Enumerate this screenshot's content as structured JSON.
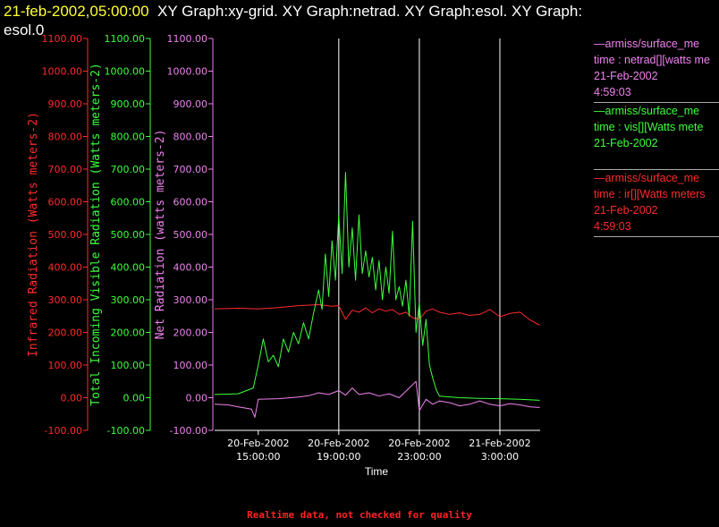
{
  "header": {
    "timestamp": "21-feb-2002,05:00:00",
    "titles": "XY Graph:xy-grid.  XY Graph:netrad.  XY Graph:esol.  XY Graph:",
    "titles_line2": "esol.0"
  },
  "colors": {
    "ir": "#ff2b2b",
    "vis": "#3dff3d",
    "net": "#ee82ee",
    "axis_x": "#ffffff",
    "grid": "#ffffff"
  },
  "legend": [
    {
      "line1": "—armiss/surface_me",
      "line2": "time : netrad[][watts me",
      "line3": "21-Feb-2002",
      "line4": "4:59:03",
      "color": "#ee82ee"
    },
    {
      "line1": "—armiss/surface_me",
      "line2": "time : vis[][Watts mete",
      "line3": "21-Feb-2002",
      "line4": "",
      "color": "#3dff3d"
    },
    {
      "line1": "—armiss/surface_me",
      "line2": "time : ir[][Watts meters",
      "line3": "21-Feb-2002",
      "line4": "4:59:03",
      "color": "#ff2b2b"
    }
  ],
  "footer": "Realtime data, not checked for quality",
  "chart_data": {
    "type": "line",
    "xlabel": "Time",
    "x_ticks": [
      {
        "time": "2002-02-20T15:00:00",
        "line1": "20-Feb-2002",
        "line2": "15:00:00"
      },
      {
        "time": "2002-02-20T19:00:00",
        "line1": "20-Feb-2002",
        "line2": "19:00:00"
      },
      {
        "time": "2002-02-20T23:00:00",
        "line1": "20-Feb-2002",
        "line2": "23:00:00"
      },
      {
        "time": "2002-02-21T03:00:00",
        "line1": "21-Feb-2002",
        "line2": "3:00:00"
      }
    ],
    "xlim": [
      "2002-02-20T12:50:00",
      "2002-02-21T05:00:00"
    ],
    "grid_x": [
      "2002-02-20T19:00:00",
      "2002-02-20T23:00:00",
      "2002-02-21T03:00:00"
    ],
    "axes": [
      {
        "label": "Infrared Radiation (Watts meters-2)",
        "ylim": [
          -100,
          1100
        ],
        "ticks": [
          "-100.00",
          "0.00",
          "100.00",
          "200.00",
          "300.00",
          "400.00",
          "500.00",
          "600.00",
          "700.00",
          "800.00",
          "900.00",
          "1000.00",
          "1100.00"
        ]
      },
      {
        "label": "Total Incoming Visible Radiation (Watts meters-2)",
        "ylim": [
          -100,
          1100
        ],
        "ticks": [
          "-100.00",
          "0.00",
          "100.00",
          "200.00",
          "300.00",
          "400.00",
          "500.00",
          "600.00",
          "700.00",
          "800.00",
          "900.00",
          "1000.00",
          "1100.00"
        ]
      },
      {
        "label": "Net Radiation (watts meters-2)",
        "ylim": [
          -100,
          1100
        ],
        "ticks": [
          "-100.00",
          "0.00",
          "100.00",
          "200.00",
          "300.00",
          "400.00",
          "500.00",
          "600.00",
          "700.00",
          "800.00",
          "900.00",
          "1000.00",
          "1100.00"
        ]
      }
    ],
    "series": [
      {
        "name": "ir",
        "x": [
          "2002-02-20T12:50:00",
          "2002-02-20T14:00:00",
          "2002-02-20T15:00:00",
          "2002-02-20T16:00:00",
          "2002-02-20T17:00:00",
          "2002-02-20T18:00:00",
          "2002-02-20T18:40:00",
          "2002-02-20T19:00:00",
          "2002-02-20T19:20:00",
          "2002-02-20T19:40:00",
          "2002-02-20T20:00:00",
          "2002-02-20T20:20:00",
          "2002-02-20T20:40:00",
          "2002-02-20T21:00:00",
          "2002-02-20T21:20:00",
          "2002-02-20T21:40:00",
          "2002-02-20T22:00:00",
          "2002-02-20T22:20:00",
          "2002-02-20T22:40:00",
          "2002-02-20T23:00:00",
          "2002-02-20T23:20:00",
          "2002-02-20T23:40:00",
          "2002-02-21T00:00:00",
          "2002-02-21T00:30:00",
          "2002-02-21T01:00:00",
          "2002-02-21T01:30:00",
          "2002-02-21T02:00:00",
          "2002-02-21T02:30:00",
          "2002-02-21T03:00:00",
          "2002-02-21T03:30:00",
          "2002-02-21T04:00:00",
          "2002-02-21T04:30:00",
          "2002-02-21T04:59:00"
        ],
        "y": [
          272,
          274,
          272,
          276,
          282,
          285,
          280,
          282,
          240,
          268,
          262,
          275,
          260,
          272,
          265,
          270,
          255,
          262,
          245,
          240,
          265,
          272,
          262,
          255,
          260,
          252,
          255,
          270,
          248,
          258,
          262,
          238,
          222
        ]
      },
      {
        "name": "vis",
        "x": [
          "2002-02-20T12:50:00",
          "2002-02-20T14:00:00",
          "2002-02-20T14:45:00",
          "2002-02-20T15:00:00",
          "2002-02-20T15:15:00",
          "2002-02-20T15:30:00",
          "2002-02-20T15:45:00",
          "2002-02-20T16:00:00",
          "2002-02-20T16:15:00",
          "2002-02-20T16:30:00",
          "2002-02-20T16:45:00",
          "2002-02-20T17:00:00",
          "2002-02-20T17:15:00",
          "2002-02-20T17:30:00",
          "2002-02-20T17:45:00",
          "2002-02-20T18:00:00",
          "2002-02-20T18:10:00",
          "2002-02-20T18:20:00",
          "2002-02-20T18:30:00",
          "2002-02-20T18:40:00",
          "2002-02-20T18:50:00",
          "2002-02-20T19:00:00",
          "2002-02-20T19:10:00",
          "2002-02-20T19:20:00",
          "2002-02-20T19:30:00",
          "2002-02-20T19:40:00",
          "2002-02-20T19:50:00",
          "2002-02-20T20:00:00",
          "2002-02-20T20:10:00",
          "2002-02-20T20:20:00",
          "2002-02-20T20:30:00",
          "2002-02-20T20:40:00",
          "2002-02-20T20:50:00",
          "2002-02-20T21:00:00",
          "2002-02-20T21:10:00",
          "2002-02-20T21:20:00",
          "2002-02-20T21:30:00",
          "2002-02-20T21:40:00",
          "2002-02-20T21:50:00",
          "2002-02-20T22:00:00",
          "2002-02-20T22:10:00",
          "2002-02-20T22:20:00",
          "2002-02-20T22:30:00",
          "2002-02-20T22:40:00",
          "2002-02-20T22:50:00",
          "2002-02-20T23:00:00",
          "2002-02-20T23:10:00",
          "2002-02-20T23:20:00",
          "2002-02-20T23:30:00",
          "2002-02-20T23:40:00",
          "2002-02-20T23:50:00",
          "2002-02-21T00:00:00",
          "2002-02-21T01:00:00",
          "2002-02-21T02:00:00",
          "2002-02-21T03:00:00",
          "2002-02-21T04:00:00",
          "2002-02-21T04:59:00"
        ],
        "y": [
          10,
          12,
          30,
          100,
          180,
          110,
          130,
          95,
          180,
          140,
          200,
          165,
          230,
          180,
          260,
          330,
          270,
          440,
          310,
          480,
          360,
          560,
          380,
          690,
          400,
          520,
          360,
          560,
          380,
          450,
          370,
          430,
          330,
          420,
          300,
          400,
          320,
          510,
          300,
          340,
          280,
          360,
          250,
          540,
          200,
          290,
          160,
          240,
          100,
          60,
          25,
          5,
          0,
          -2,
          -3,
          -5,
          -8
        ]
      },
      {
        "name": "net",
        "x": [
          "2002-02-20T12:50:00",
          "2002-02-20T13:30:00",
          "2002-02-20T14:00:00",
          "2002-02-20T14:40:00",
          "2002-02-20T14:50:00",
          "2002-02-20T15:00:00",
          "2002-02-20T16:00:00",
          "2002-02-20T17:00:00",
          "2002-02-20T17:30:00",
          "2002-02-20T18:00:00",
          "2002-02-20T18:30:00",
          "2002-02-20T19:00:00",
          "2002-02-20T19:20:00",
          "2002-02-20T19:40:00",
          "2002-02-20T20:00:00",
          "2002-02-20T20:30:00",
          "2002-02-20T21:00:00",
          "2002-02-20T21:30:00",
          "2002-02-20T22:00:00",
          "2002-02-20T22:30:00",
          "2002-02-20T22:50:00",
          "2002-02-20T23:00:00",
          "2002-02-20T23:20:00",
          "2002-02-20T23:40:00",
          "2002-02-21T00:00:00",
          "2002-02-21T00:30:00",
          "2002-02-21T01:00:00",
          "2002-02-21T01:30:00",
          "2002-02-21T02:00:00",
          "2002-02-21T02:30:00",
          "2002-02-21T03:00:00",
          "2002-02-21T03:30:00",
          "2002-02-21T04:00:00",
          "2002-02-21T04:30:00",
          "2002-02-21T04:59:00"
        ],
        "y": [
          -20,
          -22,
          -28,
          -35,
          -60,
          -5,
          -3,
          2,
          6,
          15,
          10,
          22,
          8,
          30,
          10,
          15,
          5,
          12,
          0,
          30,
          50,
          -40,
          -5,
          -20,
          -10,
          -15,
          -25,
          -20,
          -10,
          -20,
          -25,
          -18,
          -22,
          -28,
          -30
        ]
      }
    ]
  }
}
